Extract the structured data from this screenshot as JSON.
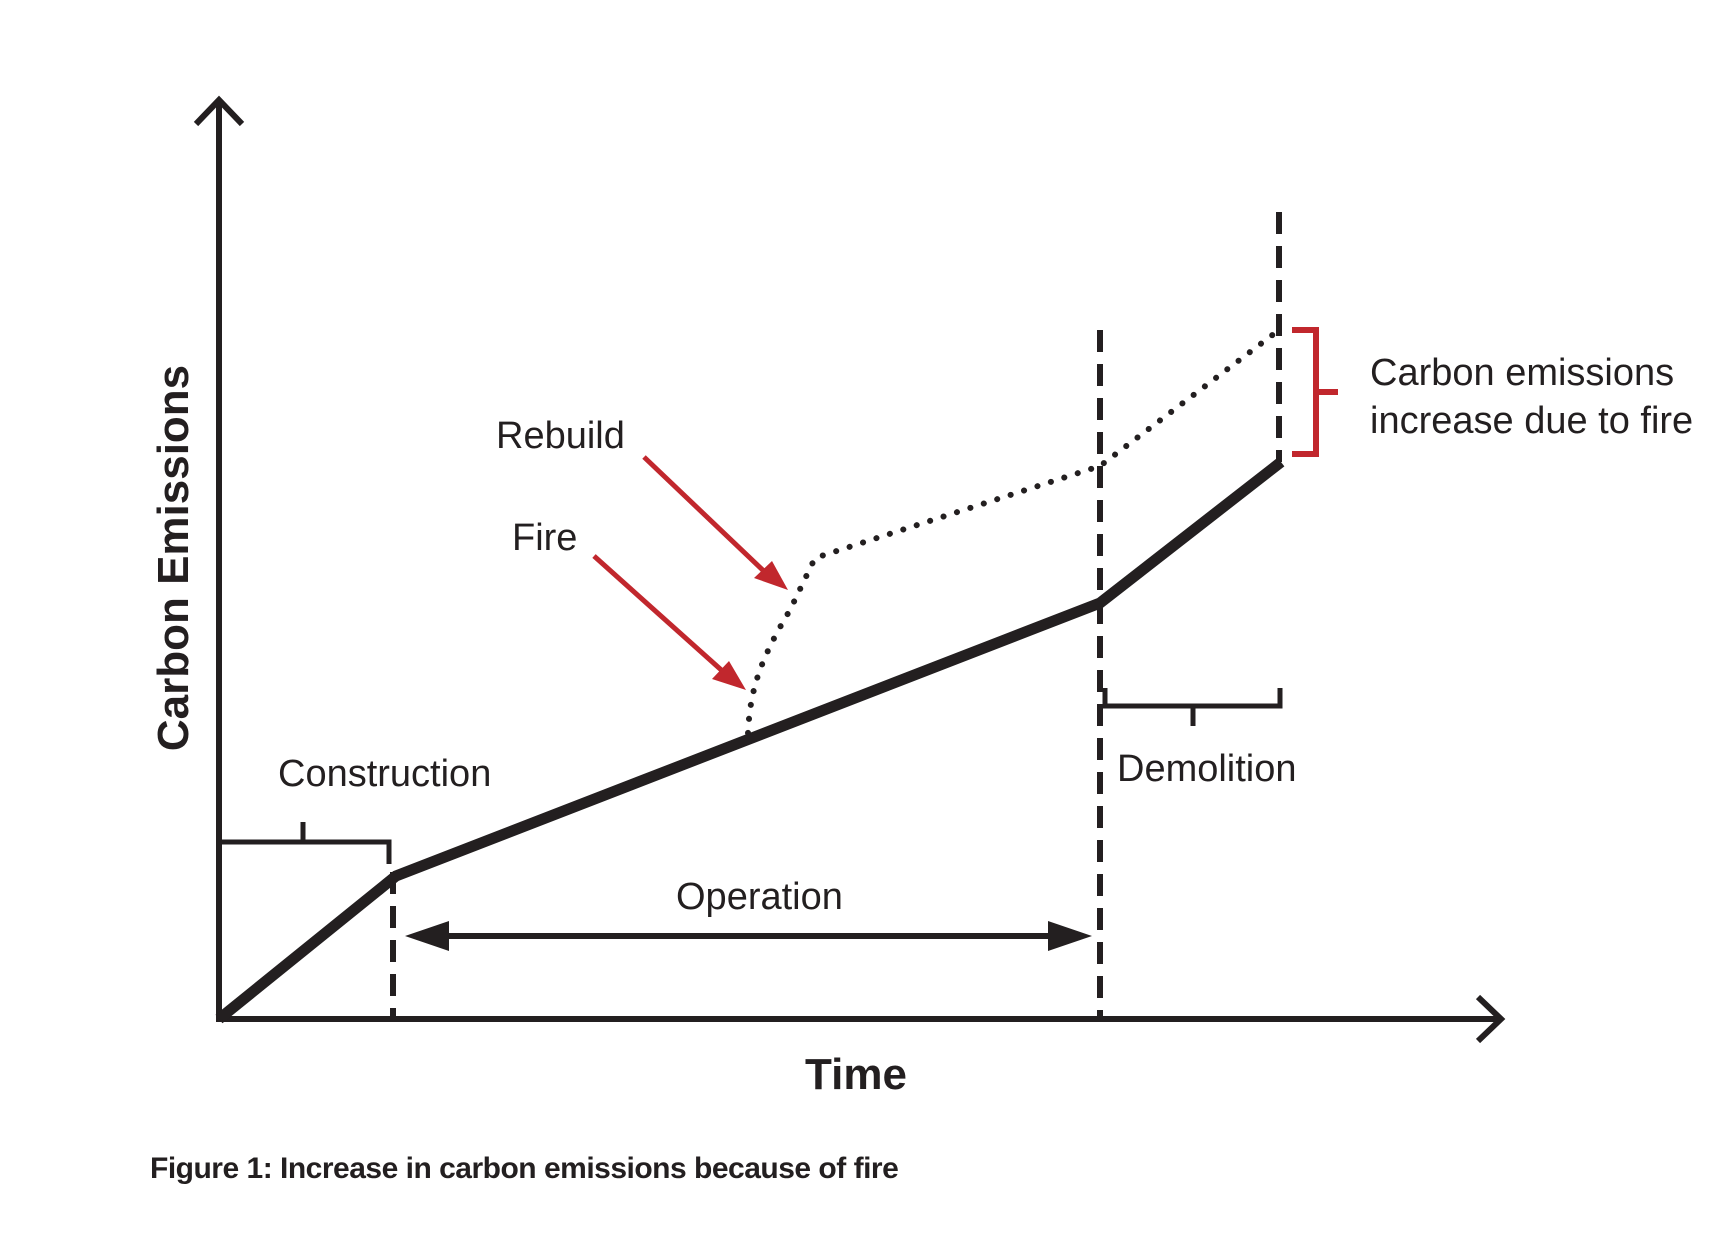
{
  "axes": {
    "y_label": "Carbon Emissions",
    "x_label": "Time"
  },
  "phases": {
    "construction": "Construction",
    "operation": "Operation",
    "demolition": "Demolition"
  },
  "annotations": {
    "rebuild": "Rebuild",
    "fire": "Fire",
    "increase_line1": "Carbon emissions",
    "increase_line2": "increase due to fire"
  },
  "caption": "Figure 1: Increase in carbon emissions because of fire",
  "colors": {
    "ink": "#231f20",
    "accent_red": "#c1272d"
  }
}
